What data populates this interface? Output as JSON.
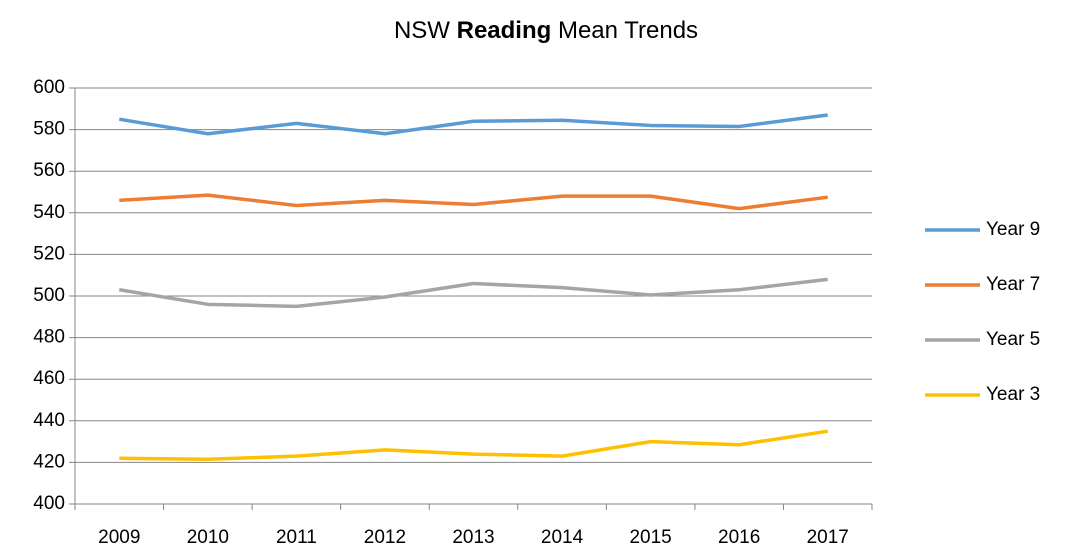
{
  "chart_data": {
    "type": "line",
    "title": [
      "NSW",
      "Reading",
      "Mean Trends"
    ],
    "categories": [
      "2009",
      "2010",
      "2011",
      "2012",
      "2013",
      "2014",
      "2015",
      "2016",
      "2017"
    ],
    "series": [
      {
        "name": "Year 9",
        "color": "#5b9bd5",
        "values": [
          585,
          578,
          583,
          578,
          584,
          584.5,
          582,
          581.5,
          587
        ]
      },
      {
        "name": "Year 7",
        "color": "#ed7d31",
        "values": [
          546,
          548.5,
          543.5,
          546,
          544,
          548,
          548,
          542,
          547.5
        ]
      },
      {
        "name": "Year 5",
        "color": "#a5a5a5",
        "values": [
          503,
          496,
          495,
          499.5,
          506,
          504,
          500.5,
          503,
          508
        ]
      },
      {
        "name": "Year 3",
        "color": "#ffc000",
        "values": [
          422,
          421.5,
          423,
          426,
          424,
          423,
          430,
          428.5,
          435
        ]
      }
    ],
    "ylim": [
      400,
      600
    ],
    "yticks": [
      400,
      420,
      440,
      460,
      480,
      500,
      520,
      540,
      560,
      580,
      600
    ],
    "grid": true,
    "legend": "right"
  }
}
